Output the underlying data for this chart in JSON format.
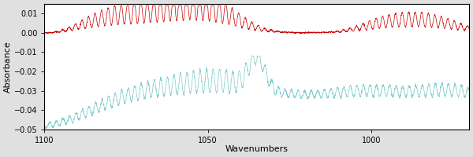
{
  "xlabel": "Wavenumbers",
  "ylabel": "Absorbance",
  "xlim": [
    1100,
    970
  ],
  "ylim": [
    -0.05,
    0.015
  ],
  "yticks": [
    0.01,
    0.0,
    -0.01,
    -0.02,
    -0.03,
    -0.04,
    -0.05
  ],
  "xticks": [
    1100,
    1050,
    1000
  ],
  "red_color": "#cc0000",
  "cyan_color": "#80cccc",
  "background_color": "#e0e0e0",
  "plot_bg_color": "#ffffff",
  "seed": 42,
  "n_points": 2600
}
